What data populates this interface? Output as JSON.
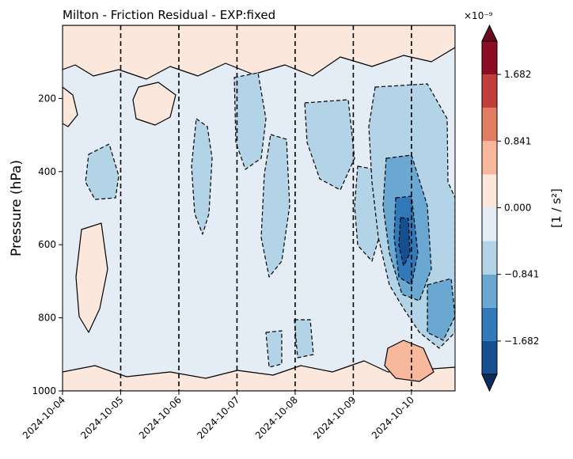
{
  "chart_data": {
    "type": "heatmap",
    "title": "Milton - Friction Residual - EXP:fixed",
    "xlabel": "",
    "ylabel": "Pressure (hPa)",
    "x_ticks": [
      "2024-10-04",
      "2024-10-05",
      "2024-10-06",
      "2024-10-07",
      "2024-10-08",
      "2024-10-09",
      "2024-10-10"
    ],
    "x_range": [
      "2024-10-04",
      "2024-10-10 18:00"
    ],
    "y_ticks": [
      200,
      400,
      600,
      800,
      1000
    ],
    "y_range": [
      1000,
      0
    ],
    "y_inverted": true,
    "vertical_markers": [
      "2024-10-05",
      "2024-10-06",
      "2024-10-07",
      "2024-10-08",
      "2024-10-09",
      "2024-10-10"
    ],
    "colorbar": {
      "label": "[1 / s²]",
      "exponent": "×10⁻⁹",
      "ticks": [
        "1.682",
        "0.841",
        "0.000",
        "−0.841",
        "−1.682"
      ],
      "tick_values": [
        1.682,
        0.841,
        0.0,
        -0.841,
        -1.682
      ],
      "levels_low_to_high": [
        -2.102,
        -1.682,
        -1.261,
        -0.841,
        -0.42,
        0.0,
        0.42,
        0.841,
        1.261,
        1.682,
        2.102
      ],
      "colors_low_to_high": [
        "#164f8f",
        "#3179b8",
        "#6aa8d1",
        "#b3d4e7",
        "#e4edf5",
        "#fbe7dc",
        "#f7b89b",
        "#e27d63",
        "#c23e3d",
        "#8b0e26"
      ],
      "under_color": "#0b2e5e",
      "over_color": "#6a0a1e"
    },
    "background_level_color": "#e4edf5",
    "contour_line_color": "#000000"
  }
}
